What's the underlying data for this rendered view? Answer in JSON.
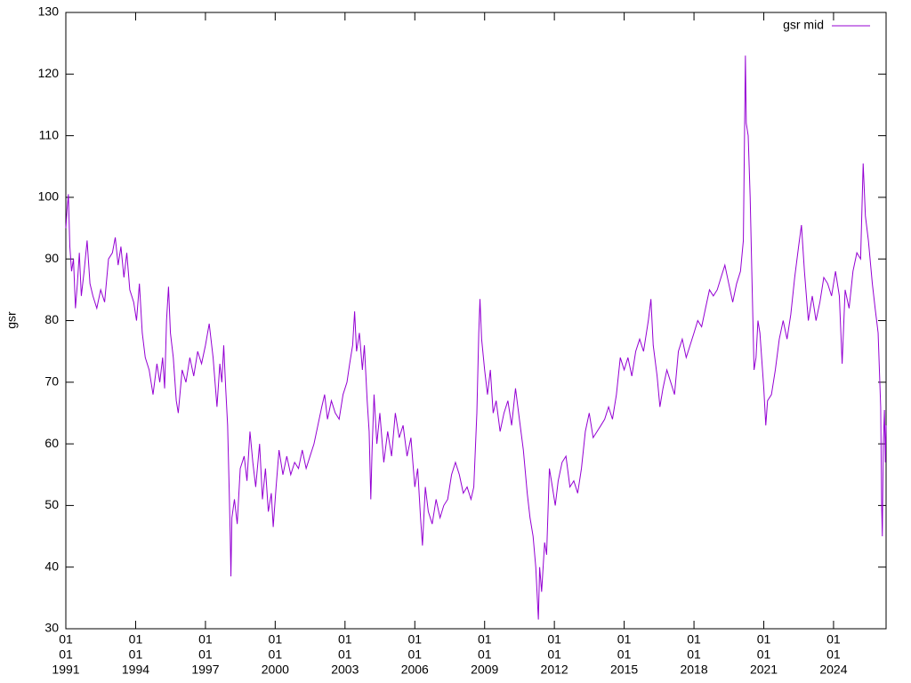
{
  "chart_data": {
    "type": "line",
    "ylabel": "gsr",
    "legend": "top right",
    "xlim": [
      "1991-01-01",
      "2026-04-05"
    ],
    "xticks": [
      {
        "value": "1991-01-01",
        "label": [
          "01",
          "01",
          "1991"
        ]
      },
      {
        "value": "1994-01-01",
        "label": [
          "01",
          "01",
          "1994"
        ]
      },
      {
        "value": "1997-01-01",
        "label": [
          "01",
          "01",
          "1997"
        ]
      },
      {
        "value": "2000-01-01",
        "label": [
          "01",
          "01",
          "2000"
        ]
      },
      {
        "value": "2003-01-01",
        "label": [
          "01",
          "01",
          "2003"
        ]
      },
      {
        "value": "2006-01-01",
        "label": [
          "01",
          "01",
          "2006"
        ]
      },
      {
        "value": "2009-01-01",
        "label": [
          "01",
          "01",
          "2009"
        ]
      },
      {
        "value": "2012-01-01",
        "label": [
          "01",
          "01",
          "2012"
        ]
      },
      {
        "value": "2015-01-01",
        "label": [
          "01",
          "01",
          "2015"
        ]
      },
      {
        "value": "2018-01-01",
        "label": [
          "01",
          "01",
          "2018"
        ]
      },
      {
        "value": "2021-01-01",
        "label": [
          "01",
          "01",
          "2021"
        ]
      },
      {
        "value": "2024-01-01",
        "label": [
          "01",
          "01",
          "2024"
        ]
      }
    ],
    "ylim": [
      30,
      130
    ],
    "yticks": [
      30,
      40,
      50,
      60,
      70,
      80,
      90,
      100,
      110,
      120,
      130
    ],
    "x": [
      "1991-01-02",
      "1991-01-20",
      "1991-02-10",
      "1991-03-05",
      "1991-04-01",
      "1991-05-01",
      "1991-06-01",
      "1991-07-01",
      "1991-08-01",
      "1991-09-01",
      "1991-10-15",
      "1991-12-01",
      "1992-01-15",
      "1992-03-01",
      "1992-05-01",
      "1992-07-01",
      "1992-09-01",
      "1992-11-01",
      "1993-01-01",
      "1993-02-15",
      "1993-04-01",
      "1993-05-15",
      "1993-07-01",
      "1993-08-15",
      "1993-10-01",
      "1993-12-01",
      "1994-01-15",
      "1994-03-01",
      "1994-04-15",
      "1994-06-01",
      "1994-08-01",
      "1994-10-01",
      "1994-12-01",
      "1995-01-15",
      "1995-03-01",
      "1995-04-01",
      "1995-05-01",
      "1995-06-01",
      "1995-07-01",
      "1995-08-15",
      "1995-10-01",
      "1995-11-01",
      "1996-01-01",
      "1996-03-01",
      "1996-05-01",
      "1996-07-01",
      "1996-09-01",
      "1996-11-01",
      "1997-01-01",
      "1997-03-01",
      "1997-05-01",
      "1997-07-01",
      "1997-08-15",
      "1997-09-15",
      "1997-10-15",
      "1997-11-15",
      "1997-12-15",
      "1998-01-10",
      "1998-01-25",
      "1998-02-05",
      "1998-02-20",
      "1998-04-01",
      "1998-05-15",
      "1998-07-01",
      "1998-09-01",
      "1998-10-15",
      "1998-12-01",
      "1999-01-15",
      "1999-03-01",
      "1999-05-01",
      "1999-06-15",
      "1999-08-01",
      "1999-09-15",
      "1999-11-01",
      "1999-12-01",
      "2000-01-15",
      "2000-03-01",
      "2000-05-01",
      "2000-07-01",
      "2000-09-01",
      "2000-11-01",
      "2001-01-01",
      "2001-03-01",
      "2001-05-01",
      "2001-07-01",
      "2001-09-01",
      "2001-11-01",
      "2002-01-01",
      "2002-02-15",
      "2002-04-01",
      "2002-06-01",
      "2002-08-01",
      "2002-10-01",
      "2002-12-01",
      "2003-02-01",
      "2003-03-15",
      "2003-05-01",
      "2003-06-01",
      "2003-07-01",
      "2003-08-15",
      "2003-10-01",
      "2003-11-01",
      "2003-12-15",
      "2004-01-15",
      "2004-02-10",
      "2004-03-01",
      "2004-04-01",
      "2004-05-15",
      "2004-07-01",
      "2004-09-01",
      "2004-11-01",
      "2005-01-01",
      "2005-03-01",
      "2005-05-01",
      "2005-07-01",
      "2005-09-01",
      "2005-11-01",
      "2006-01-01",
      "2006-02-15",
      "2006-04-01",
      "2006-05-01",
      "2006-06-15",
      "2006-08-01",
      "2006-10-01",
      "2006-12-01",
      "2007-02-01",
      "2007-04-01",
      "2007-06-01",
      "2007-08-01",
      "2007-10-01",
      "2007-12-01",
      "2008-02-01",
      "2008-04-01",
      "2008-06-01",
      "2008-07-15",
      "2008-09-01",
      "2008-10-01",
      "2008-10-20",
      "2008-11-15",
      "2009-01-01",
      "2009-02-15",
      "2009-04-01",
      "2009-05-15",
      "2009-07-01",
      "2009-09-01",
      "2009-11-01",
      "2010-01-01",
      "2010-03-01",
      "2010-05-01",
      "2010-07-01",
      "2010-09-01",
      "2010-11-01",
      "2010-12-15",
      "2011-02-01",
      "2011-03-15",
      "2011-04-25",
      "2011-05-15",
      "2011-06-15",
      "2011-08-01",
      "2011-09-01",
      "2011-10-15",
      "2011-12-01",
      "2012-01-15",
      "2012-03-01",
      "2012-05-01",
      "2012-07-01",
      "2012-09-01",
      "2012-11-01",
      "2013-01-01",
      "2013-03-01",
      "2013-05-01",
      "2013-07-01",
      "2013-09-01",
      "2013-11-01",
      "2014-01-01",
      "2014-03-01",
      "2014-05-01",
      "2014-07-01",
      "2014-09-01",
      "2014-11-01",
      "2015-01-01",
      "2015-03-01",
      "2015-05-01",
      "2015-07-01",
      "2015-09-01",
      "2015-11-01",
      "2016-01-15",
      "2016-02-25",
      "2016-04-01",
      "2016-06-01",
      "2016-07-15",
      "2016-09-01",
      "2016-11-01",
      "2017-01-01",
      "2017-03-01",
      "2017-05-01",
      "2017-07-01",
      "2017-09-01",
      "2017-11-01",
      "2018-01-01",
      "2018-03-01",
      "2018-05-01",
      "2018-07-01",
      "2018-09-01",
      "2018-11-01",
      "2019-01-01",
      "2019-03-01",
      "2019-05-01",
      "2019-07-01",
      "2019-09-01",
      "2019-11-01",
      "2020-01-01",
      "2020-02-15",
      "2020-03-18",
      "2020-04-01",
      "2020-05-01",
      "2020-06-01",
      "2020-07-01",
      "2020-08-01",
      "2020-09-01",
      "2020-10-01",
      "2020-11-01",
      "2021-01-01",
      "2021-02-01",
      "2021-03-01",
      "2021-05-01",
      "2021-07-01",
      "2021-09-01",
      "2021-11-01",
      "2022-01-01",
      "2022-03-01",
      "2022-05-01",
      "2022-07-01",
      "2022-08-15",
      "2022-10-01",
      "2022-12-01",
      "2023-02-01",
      "2023-04-01",
      "2023-06-01",
      "2023-08-01",
      "2023-10-01",
      "2023-12-01",
      "2024-02-01",
      "2024-04-01",
      "2024-05-15",
      "2024-07-01",
      "2024-09-01",
      "2024-11-01",
      "2025-01-01",
      "2025-03-01",
      "2025-04-10",
      "2025-05-15",
      "2025-07-01",
      "2025-09-01",
      "2025-10-15",
      "2025-12-01",
      "2026-01-10",
      "2026-01-25",
      "2026-02-05",
      "2026-02-20",
      "2026-03-10",
      "2026-03-25",
      "2026-04-04"
    ],
    "series": [
      {
        "name": "gsr mid",
        "color": "#9400d3",
        "values": [
          95,
          98,
          100.5,
          92,
          88,
          90,
          82,
          86,
          91,
          84,
          88,
          93,
          86,
          84,
          82,
          85,
          83,
          90,
          91,
          93.5,
          89,
          92,
          87,
          91,
          85,
          83,
          80,
          86,
          78,
          74,
          72,
          68,
          73,
          70,
          74,
          69,
          80,
          85.5,
          78,
          74,
          67,
          65,
          72,
          70,
          74,
          71,
          75,
          73,
          76,
          79.5,
          74,
          66,
          73,
          70,
          76,
          69,
          63,
          52,
          45,
          38.5,
          48,
          51,
          47,
          56,
          58,
          54,
          62,
          57,
          53,
          60,
          51,
          56,
          49,
          52,
          46.5,
          53,
          59,
          55,
          58,
          55,
          57,
          56,
          59,
          56,
          58,
          60,
          63,
          66,
          68,
          64,
          67,
          65,
          64,
          68,
          70,
          73,
          76,
          81.5,
          75,
          78,
          72,
          76,
          67,
          62,
          51,
          59,
          68,
          60,
          65,
          57,
          62,
          58,
          65,
          61,
          63,
          58,
          61,
          53,
          56,
          48,
          43.5,
          53,
          49,
          47,
          51,
          48,
          50,
          51,
          55,
          57,
          55,
          52,
          53,
          51,
          53,
          65,
          78,
          83.5,
          77,
          72,
          68,
          72,
          65,
          67,
          62,
          65,
          67,
          63,
          69,
          64,
          59,
          52,
          48,
          45,
          40,
          31.5,
          40,
          36,
          44,
          42,
          56,
          53,
          50,
          54,
          57,
          58,
          53,
          54,
          52,
          56,
          62,
          65,
          61,
          62,
          63,
          64,
          66,
          64,
          68,
          74,
          72,
          74,
          71,
          75,
          77,
          75,
          80,
          83.5,
          76,
          71,
          66,
          69,
          72,
          70,
          68,
          75,
          77,
          74,
          76,
          78,
          80,
          79,
          82,
          85,
          84,
          85,
          87,
          89,
          86,
          83,
          86,
          88,
          93,
          123,
          112,
          110,
          100,
          86,
          72,
          74,
          80,
          78,
          69,
          63,
          67,
          68,
          72,
          77,
          80,
          77,
          81,
          87,
          92,
          95.5,
          88,
          80,
          84,
          80,
          83,
          87,
          86,
          84,
          88,
          84,
          73,
          85,
          82,
          88,
          91,
          90,
          105.5,
          97,
          93,
          86,
          82,
          78,
          66,
          50,
          45,
          60,
          65.5,
          57,
          63
        ]
      }
    ]
  }
}
